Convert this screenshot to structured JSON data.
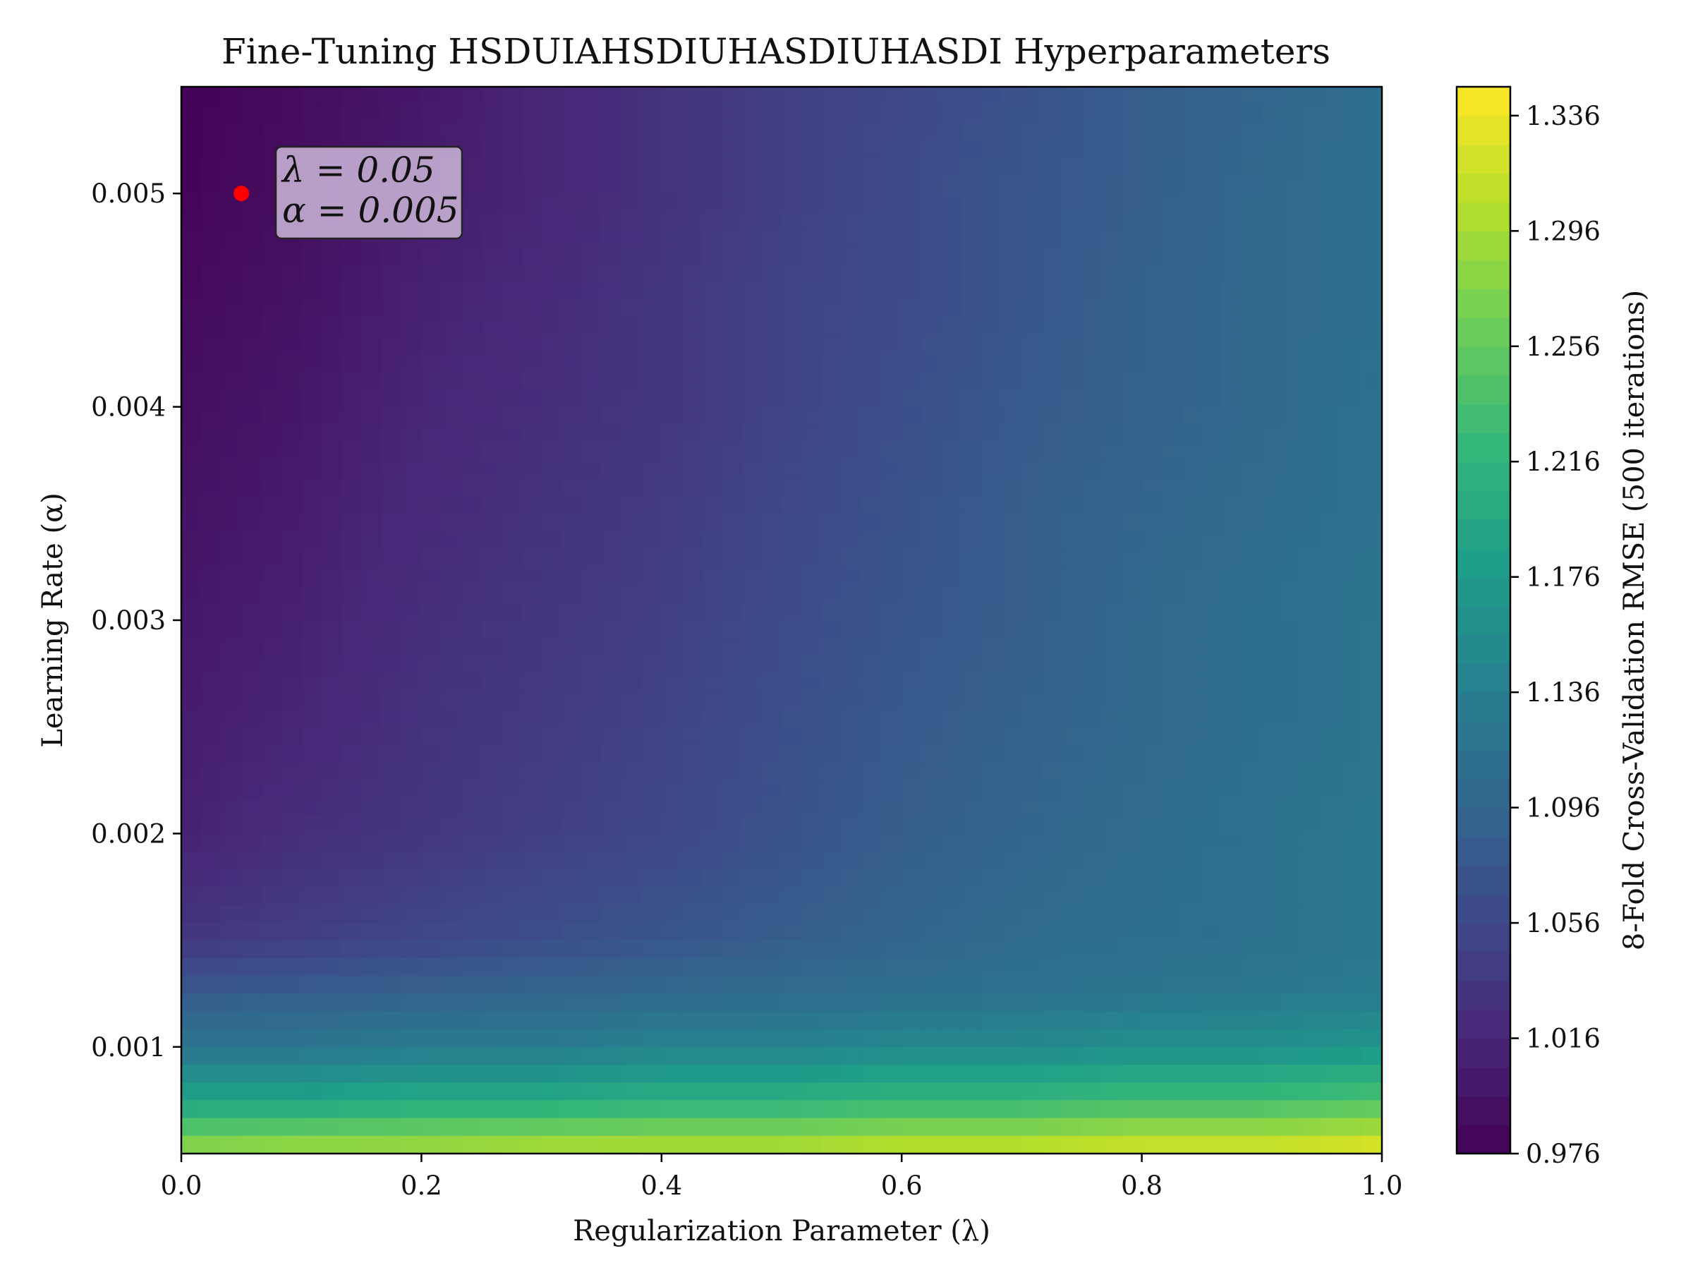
{
  "chart_data": {
    "type": "heatmap",
    "title": "Fine-Tuning HSDUIAHSDIUHASDIUHASDI Hyperparameters",
    "xlabel": "Regularization Parameter (λ)",
    "ylabel": "Learning Rate (α)",
    "colorbar_label": "8-Fold Cross-Validation RMSE (500 iterations)",
    "colormap": "viridis",
    "xlim": [
      0.0,
      1.0
    ],
    "ylim": [
      0.0005,
      0.0055
    ],
    "zlim": [
      0.976,
      1.346
    ],
    "x_ticks": [
      "0.0",
      "0.2",
      "0.4",
      "0.6",
      "0.8",
      "1.0"
    ],
    "y_ticks": [
      "0.001",
      "0.002",
      "0.003",
      "0.004",
      "0.005"
    ],
    "colorbar_ticks": [
      "0.976",
      "1.016",
      "1.056",
      "1.096",
      "1.136",
      "1.176",
      "1.216",
      "1.256",
      "1.296",
      "1.336"
    ],
    "x": [
      0.0,
      0.1,
      0.2,
      0.3,
      0.4,
      0.5,
      0.6,
      0.7,
      0.8,
      0.9,
      1.0
    ],
    "y": [
      0.0005,
      0.00075,
      0.001,
      0.00125,
      0.0015,
      0.002,
      0.0025,
      0.003,
      0.0035,
      0.004,
      0.0045,
      0.005,
      0.0055
    ],
    "z": [
      [
        1.29,
        1.3,
        1.3,
        1.31,
        1.31,
        1.31,
        1.32,
        1.32,
        1.33,
        1.33,
        1.34
      ],
      [
        1.19,
        1.19,
        1.2,
        1.2,
        1.21,
        1.21,
        1.22,
        1.22,
        1.23,
        1.23,
        1.24
      ],
      [
        1.12,
        1.12,
        1.13,
        1.13,
        1.14,
        1.14,
        1.15,
        1.15,
        1.16,
        1.16,
        1.17
      ],
      [
        1.08,
        1.085,
        1.09,
        1.095,
        1.1,
        1.105,
        1.11,
        1.115,
        1.12,
        1.125,
        1.13
      ],
      [
        1.035,
        1.045,
        1.055,
        1.065,
        1.075,
        1.085,
        1.095,
        1.105,
        1.11,
        1.115,
        1.125
      ],
      [
        1.01,
        1.025,
        1.035,
        1.045,
        1.055,
        1.07,
        1.085,
        1.095,
        1.105,
        1.115,
        1.125
      ],
      [
        1.005,
        1.015,
        1.03,
        1.04,
        1.05,
        1.065,
        1.08,
        1.09,
        1.1,
        1.11,
        1.12
      ],
      [
        1.0,
        1.01,
        1.025,
        1.035,
        1.045,
        1.06,
        1.075,
        1.085,
        1.1,
        1.11,
        1.12
      ],
      [
        0.995,
        1.005,
        1.02,
        1.03,
        1.04,
        1.055,
        1.07,
        1.085,
        1.095,
        1.105,
        1.115
      ],
      [
        0.99,
        1.0,
        1.015,
        1.025,
        1.035,
        1.05,
        1.065,
        1.08,
        1.09,
        1.1,
        1.115
      ],
      [
        0.985,
        0.995,
        1.01,
        1.02,
        1.035,
        1.05,
        1.06,
        1.075,
        1.09,
        1.1,
        1.11
      ],
      [
        0.98,
        0.99,
        1.005,
        1.015,
        1.03,
        1.045,
        1.06,
        1.075,
        1.085,
        1.1,
        1.11
      ],
      [
        0.978,
        0.988,
        1.0,
        1.015,
        1.03,
        1.045,
        1.055,
        1.07,
        1.085,
        1.095,
        1.11
      ]
    ],
    "marker": {
      "x": 0.05,
      "y": 0.005,
      "color": "#ff0000"
    },
    "annotation": {
      "line1": "λ = 0.05",
      "line2": "α = 0.005"
    }
  }
}
